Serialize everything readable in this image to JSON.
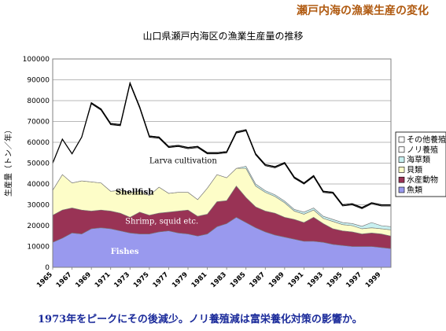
{
  "header": "瀬戸内海の漁業生産の変化",
  "caption": "1973年をピークにその後減少。ノリ養殖減は富栄養化対策の影響か。",
  "colors": {
    "fishes": "#9999ee",
    "aquatic_animals": "#993355",
    "shellfish": "#fdfdc8",
    "seaweed": "#c8f0f0",
    "nori": "#ffffff",
    "other": "#ffffff",
    "caption": "#1a2a9a",
    "header": "#b05a10"
  },
  "chart_data": {
    "type": "area",
    "title": "山口県瀬戸内海区の漁業生産量の推移",
    "ylabel": "生産量（トン／年）",
    "xlabel": "",
    "ylim": [
      0,
      100000
    ],
    "yticks": [
      0,
      10000,
      20000,
      30000,
      40000,
      50000,
      60000,
      70000,
      80000,
      90000,
      100000
    ],
    "grid": true,
    "legend_position": "right",
    "x": [
      1965,
      1966,
      1967,
      1968,
      1969,
      1970,
      1971,
      1972,
      1973,
      1974,
      1975,
      1976,
      1977,
      1978,
      1979,
      1980,
      1981,
      1982,
      1983,
      1984,
      1985,
      1986,
      1987,
      1988,
      1989,
      1990,
      1991,
      1992,
      1993,
      1994,
      1995,
      1996,
      1997,
      1998,
      1999,
      2000
    ],
    "xtick_labels": [
      "1965",
      "1967",
      "1969",
      "1971",
      "1973",
      "1975",
      "1977",
      "1979",
      "1981",
      "1983",
      "1985",
      "1987",
      "1989",
      "1991",
      "1993",
      "1995",
      "1997",
      "1999"
    ],
    "series": [
      {
        "name": "魚類",
        "color": "#9999ee",
        "values": [
          12000,
          14000,
          16500,
          16000,
          18500,
          19000,
          18500,
          17500,
          16500,
          16000,
          16000,
          17000,
          17500,
          16500,
          16000,
          15000,
          16000,
          19500,
          21000,
          24000,
          21500,
          19000,
          17000,
          15500,
          14500,
          13500,
          12500,
          12500,
          12000,
          11000,
          10500,
          10000,
          10000,
          10000,
          9500,
          9000
        ]
      },
      {
        "name": "水産動物",
        "color": "#993355",
        "values": [
          13000,
          13500,
          12000,
          11500,
          8500,
          8500,
          8500,
          8500,
          7500,
          10500,
          9000,
          9000,
          9000,
          10500,
          11500,
          9500,
          9500,
          12000,
          11000,
          15000,
          12000,
          10000,
          10000,
          10500,
          9500,
          9500,
          9000,
          11500,
          9000,
          7500,
          7000,
          7000,
          6000,
          6500,
          6500,
          6000
        ]
      },
      {
        "name": "貝類",
        "color": "#fdfdc8",
        "values": [
          12000,
          17000,
          12000,
          14000,
          14000,
          13000,
          9500,
          11000,
          12000,
          10000,
          9500,
          12500,
          9000,
          9000,
          8500,
          8000,
          12500,
          13000,
          11000,
          8500,
          14000,
          10000,
          9000,
          8000,
          7000,
          4000,
          4000,
          3500,
          2500,
          3500,
          3000,
          3000,
          2500,
          2500,
          2500,
          3000
        ]
      },
      {
        "name": "海草類",
        "color": "#c8f0f0",
        "values": [
          0,
          0,
          0,
          0,
          0,
          0,
          0,
          0,
          0,
          0,
          0,
          0,
          0,
          0,
          0,
          0,
          0,
          0,
          0,
          0,
          1000,
          1000,
          800,
          800,
          800,
          800,
          1000,
          1000,
          1000,
          1000,
          1000,
          1000,
          1200,
          2500,
          1500,
          1500
        ]
      },
      {
        "name": "ノリ養殖",
        "color": "#ffffff",
        "values": [
          13000,
          17000,
          14000,
          21000,
          37500,
          35000,
          32000,
          31000,
          52000,
          40000,
          28000,
          23500,
          22000,
          22000,
          21000,
          25000,
          16500,
          10000,
          12000,
          17000,
          17000,
          14000,
          12000,
          13000,
          18000,
          15000,
          13500,
          15000,
          11500,
          12500,
          8000,
          9000,
          8500,
          9000,
          9500,
          10000
        ]
      },
      {
        "name": "その他養殖",
        "color": "#ffffff",
        "values": [
          0,
          0,
          0,
          0,
          500,
          500,
          500,
          500,
          500,
          500,
          500,
          500,
          500,
          500,
          500,
          500,
          500,
          500,
          500,
          500,
          500,
          500,
          500,
          500,
          500,
          500,
          500,
          500,
          500,
          500,
          500,
          500,
          500,
          500,
          500,
          500
        ]
      }
    ],
    "legend_order": [
      "その他養殖",
      "ノリ養殖",
      "海草類",
      "貝類",
      "水産動物",
      "魚類"
    ],
    "annotations": [
      {
        "text": "Larva cultivation",
        "x": 1975,
        "y": 50000
      },
      {
        "text": "Shellfish",
        "x": 1971.5,
        "y": 35000
      },
      {
        "text": "Shrimp, squid etc.",
        "x": 1972.5,
        "y": 21000
      },
      {
        "text": "Fishes",
        "x": 1971,
        "y": 6500
      }
    ]
  }
}
